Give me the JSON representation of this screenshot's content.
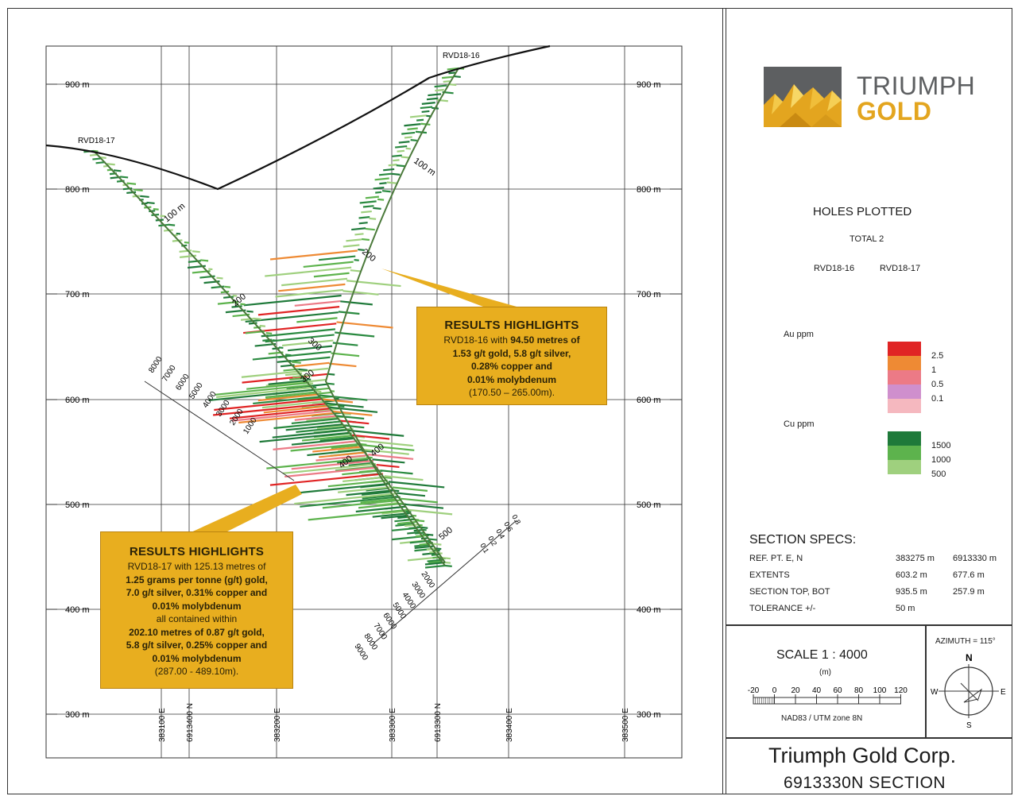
{
  "section": {
    "elevations": [
      "900 m",
      "800 m",
      "700 m",
      "600 m",
      "500 m",
      "400 m",
      "300 m"
    ],
    "eastings": [
      "383100 E",
      "383200 E",
      "383300 E",
      "383400 E",
      "383500 E"
    ],
    "northings": [
      "6913400 N",
      "6913300 N"
    ],
    "holes": [
      {
        "name": "RVD18-16",
        "depth_labels": [
          "100 m",
          "200",
          "300",
          "400",
          "500"
        ]
      },
      {
        "name": "RVD18-17",
        "depth_labels": [
          "100 m",
          "200",
          "300",
          "400"
        ]
      }
    ],
    "scale_bar_left": [
      "8000",
      "7000",
      "6000",
      "5000",
      "4000",
      "3000",
      "2000",
      "1000"
    ],
    "scale_bar_right": [
      "2000",
      "3000",
      "4000",
      "5000",
      "6000",
      "7000",
      "8000",
      "9000"
    ],
    "scale_bar_top": [
      "0.8",
      "0.6",
      "0.4",
      "0.2",
      "0.1"
    ]
  },
  "callout_16": {
    "heading": "RESULTS HIGHLIGHTS",
    "l1a": "RVD18-16 with ",
    "l1b": "94.50 metres of",
    "l2": "1.53 g/t gold, 5.8 g/t silver,",
    "l3": "0.28% copper and",
    "l4": "0.01% molybdenum",
    "l5": "(170.50 – 265.00m)."
  },
  "callout_17": {
    "heading": "RESULTS HIGHLIGHTS",
    "l1": "RVD18-17 with 125.13 metres of",
    "l2": "1.25 grams per tonne (g/t) gold,",
    "l3": "7.0 g/t silver, 0.31% copper and",
    "l4": "0.01% molybdenum",
    "l5": "all contained within",
    "l6": "202.10 metres of 0.87 g/t gold,",
    "l7": "5.8 g/t silver, 0.25% copper and",
    "l8": "0.01% molybdenum",
    "l9": "(287.00 - 489.10m)."
  },
  "logo": {
    "line1": "TRIUMPH",
    "line2": "GOLD",
    "colors": {
      "grey": "#5d5f61",
      "gold": "#e3a51f"
    }
  },
  "holes_plotted": {
    "title": "HOLES PLOTTED",
    "total": "TOTAL 2",
    "holes": [
      "RVD18-16",
      "RVD18-17"
    ]
  },
  "legend": {
    "au": {
      "title": "Au ppm",
      "items": [
        {
          "label": "2.5",
          "color": "#e02424"
        },
        {
          "label": "1",
          "color": "#ee8a34"
        },
        {
          "label": "0.5",
          "color": "#ec7a86"
        },
        {
          "label": "0.1",
          "color": "#cf8fcd"
        },
        {
          "label": "",
          "color": "#f5b8bf"
        }
      ]
    },
    "cu": {
      "title": "Cu ppm",
      "items": [
        {
          "label": "1500",
          "color": "#1f7a3a"
        },
        {
          "label": "1000",
          "color": "#5db34d"
        },
        {
          "label": "500",
          "color": "#9fd07e"
        }
      ]
    }
  },
  "specs": {
    "title": "SECTION  SPECS:",
    "rows": [
      {
        "label": "REF. PT.  E, N",
        "v1": "383275 m",
        "v2": "6913330 m"
      },
      {
        "label": "EXTENTS",
        "v1": "603.2 m",
        "v2": "677.6 m"
      },
      {
        "label": "SECTION TOP, BOT",
        "v1": "935.5 m",
        "v2": "257.9 m"
      },
      {
        "label": "TOLERANCE  +/-",
        "v1": "50 m",
        "v2": ""
      }
    ]
  },
  "scale": {
    "title": "SCALE  1 : 4000",
    "unit": "(m)",
    "ticks": [
      "-20",
      "0",
      "20",
      "40",
      "60",
      "80",
      "100",
      "120"
    ],
    "datum": "NAD83 / UTM zone 8N"
  },
  "azimuth": {
    "label": "AZIMUTH = 115°",
    "n": "N",
    "s": "S",
    "e": "E",
    "w": "W"
  },
  "title_block": {
    "company": "Triumph Gold Corp.",
    "section": "6913330N  SECTION"
  }
}
